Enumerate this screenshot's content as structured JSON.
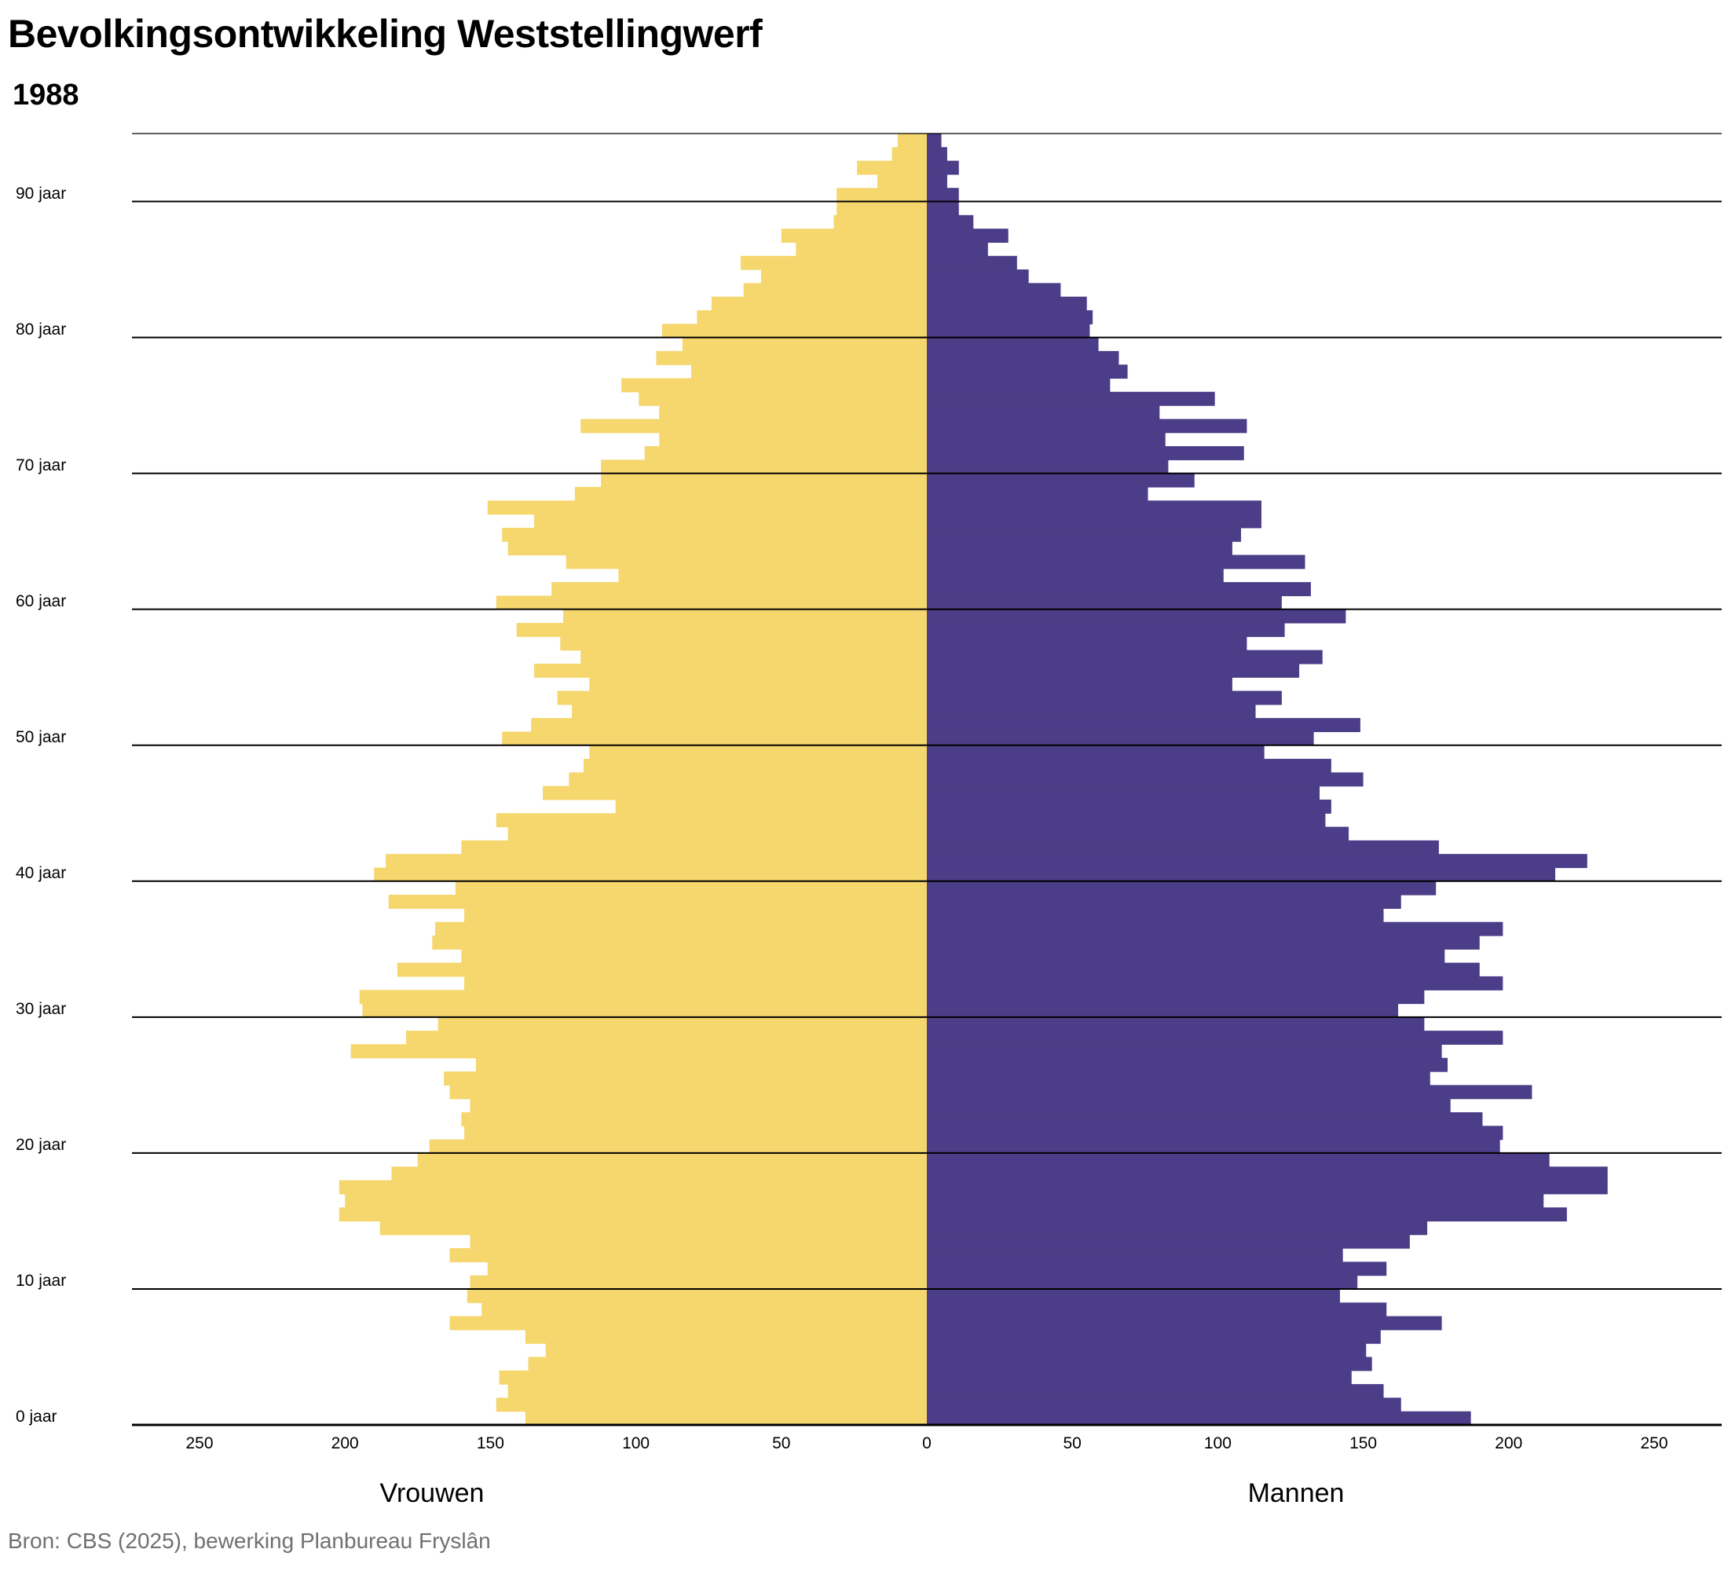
{
  "title": "Bevolkingsontwikkeling Weststellingwerf",
  "subtitle": "1988",
  "source": "Bron: CBS (2025), bewerking Planbureau Fryslân",
  "chart_data": {
    "type": "bar",
    "orientation": "horizontal population pyramid",
    "title": "Bevolkingsontwikkeling Weststellingwerf",
    "subtitle": "1988",
    "xlim": [
      -272,
      272
    ],
    "xticks": [
      -250,
      -200,
      -150,
      -100,
      -50,
      0,
      50,
      100,
      150,
      200,
      250
    ],
    "xtick_labels": [
      "250",
      "200",
      "150",
      "100",
      "50",
      "0",
      "50",
      "100",
      "150",
      "200",
      "250"
    ],
    "age_ticks": [
      0,
      10,
      20,
      30,
      40,
      50,
      60,
      70,
      80,
      90
    ],
    "age_tick_labels": [
      "0 jaar",
      "10 jaar",
      "20 jaar",
      "30 jaar",
      "40 jaar",
      "50 jaar",
      "60 jaar",
      "70 jaar",
      "80 jaar",
      "90 jaar"
    ],
    "grid": "horizontal every 10 years",
    "ages": [
      0,
      1,
      2,
      3,
      4,
      5,
      6,
      7,
      8,
      9,
      10,
      11,
      12,
      13,
      14,
      15,
      16,
      17,
      18,
      19,
      20,
      21,
      22,
      23,
      24,
      25,
      26,
      27,
      28,
      29,
      30,
      31,
      32,
      33,
      34,
      35,
      36,
      37,
      38,
      39,
      40,
      41,
      42,
      43,
      44,
      45,
      46,
      47,
      48,
      49,
      50,
      51,
      52,
      53,
      54,
      55,
      56,
      57,
      58,
      59,
      60,
      61,
      62,
      63,
      64,
      65,
      66,
      67,
      68,
      69,
      70,
      71,
      72,
      73,
      74,
      75,
      76,
      77,
      78,
      79,
      80,
      81,
      82,
      83,
      84,
      85,
      86,
      87,
      88,
      89,
      90,
      91,
      92,
      93,
      94
    ],
    "series": [
      {
        "name": "Vrouwen",
        "side": "left",
        "color": "#F5D76E",
        "values": [
          138,
          148,
          144,
          147,
          137,
          131,
          138,
          164,
          153,
          158,
          157,
          151,
          164,
          157,
          188,
          202,
          200,
          202,
          184,
          175,
          171,
          159,
          160,
          157,
          164,
          166,
          155,
          198,
          179,
          168,
          194,
          195,
          159,
          182,
          160,
          170,
          169,
          159,
          185,
          162,
          190,
          186,
          160,
          144,
          148,
          107,
          132,
          123,
          118,
          116,
          146,
          136,
          122,
          127,
          116,
          135,
          119,
          126,
          141,
          125,
          148,
          129,
          106,
          124,
          144,
          146,
          135,
          151,
          121,
          112,
          112,
          97,
          92,
          119,
          92,
          99,
          105,
          81,
          93,
          84,
          91,
          79,
          74,
          63,
          57,
          64,
          45,
          50,
          32,
          31,
          31,
          17,
          24,
          12,
          10
        ]
      },
      {
        "name": "Mannen",
        "side": "right",
        "color": "#4B3D87",
        "values": [
          187,
          163,
          157,
          146,
          153,
          151,
          156,
          177,
          158,
          142,
          148,
          158,
          143,
          166,
          172,
          220,
          212,
          234,
          234,
          214,
          197,
          198,
          191,
          180,
          208,
          173,
          179,
          177,
          198,
          171,
          162,
          171,
          198,
          190,
          178,
          190,
          198,
          157,
          163,
          175,
          216,
          227,
          176,
          145,
          137,
          139,
          135,
          150,
          139,
          116,
          133,
          149,
          113,
          122,
          105,
          128,
          136,
          110,
          123,
          144,
          122,
          132,
          102,
          130,
          105,
          108,
          115,
          115,
          76,
          92,
          83,
          109,
          82,
          110,
          80,
          99,
          63,
          69,
          66,
          59,
          56,
          57,
          55,
          46,
          35,
          31,
          21,
          28,
          16,
          11,
          11,
          7,
          11,
          7,
          5
        ]
      }
    ],
    "legend": [
      "Vrouwen",
      "Mannen"
    ],
    "legend_placement": "bottom, under each half"
  }
}
